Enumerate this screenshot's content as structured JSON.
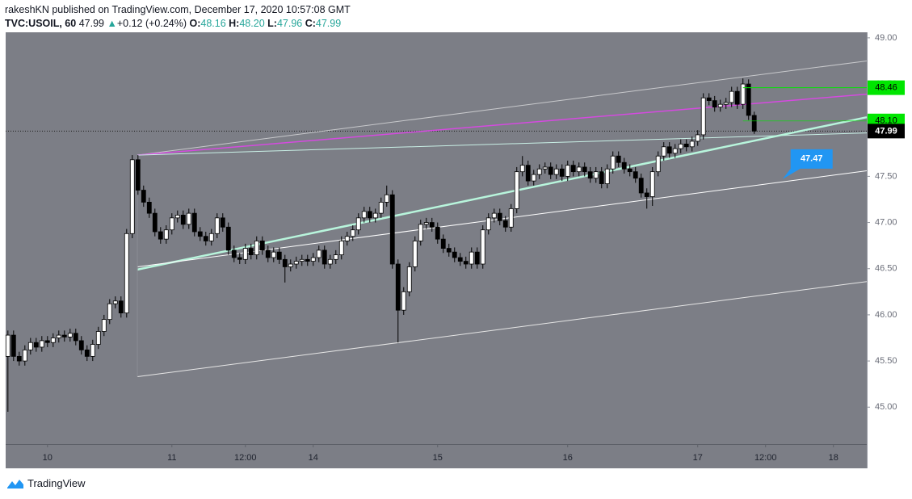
{
  "header": {
    "publisher": "rakeshKN published on TradingView.com, December 17, 2020 10:57:08 GMT",
    "symbol": "TVC:USOIL, 60",
    "last": "47.99",
    "arrow": "▲",
    "change": "+0.12 (+0.24%)",
    "o_label": "O:",
    "o": "48.16",
    "h_label": "H:",
    "h": "48.20",
    "l_label": "L:",
    "l": "47.96",
    "c_label": "C:",
    "c": "47.99"
  },
  "footer": {
    "brand": "TradingView"
  },
  "chart_data": {
    "type": "candlestick",
    "up_color": "#ffffff",
    "down_color": "#000000",
    "xlim": [
      -0.4,
      151.9
    ],
    "ylim": [
      44.6,
      49.06
    ],
    "xticks": [
      {
        "value": 7,
        "label": "10"
      },
      {
        "value": 29,
        "label": "11"
      },
      {
        "value": 42,
        "label": "12:00"
      },
      {
        "value": 54,
        "label": "14"
      },
      {
        "value": 76,
        "label": "15"
      },
      {
        "value": 99,
        "label": "16"
      },
      {
        "value": 122,
        "label": "17"
      },
      {
        "value": 134,
        "label": "12:00"
      },
      {
        "value": 146,
        "label": "18"
      }
    ],
    "yticks": [
      {
        "value": 45,
        "label": "45.00"
      },
      {
        "value": 45.5,
        "label": "45.50"
      },
      {
        "value": 46,
        "label": "46.00"
      },
      {
        "value": 46.5,
        "label": "46.50"
      },
      {
        "value": 47,
        "label": "47.00"
      },
      {
        "value": 47.5,
        "label": "47.50"
      },
      {
        "value": 48,
        "label": "48.00"
      },
      {
        "value": 48.5,
        "label": "48.50"
      },
      {
        "value": 49,
        "label": "49.00"
      }
    ],
    "open": [
      45.55,
      45.78,
      45.55,
      45.5,
      45.62,
      45.7,
      45.65,
      45.72,
      45.7,
      45.75,
      45.78,
      45.76,
      45.8,
      45.72,
      45.62,
      45.55,
      45.68,
      45.82,
      45.95,
      46.12,
      46.15,
      46.02,
      46.88,
      47.68,
      47.35,
      47.22,
      47.1,
      46.9,
      46.82,
      46.92,
      47.05,
      47.08,
      46.98,
      47.1,
      46.9,
      46.85,
      46.8,
      46.88,
      47.05,
      46.95,
      46.7,
      46.62,
      46.6,
      46.72,
      46.65,
      46.8,
      46.7,
      46.62,
      46.68,
      46.6,
      46.52,
      46.55,
      46.58,
      46.6,
      46.58,
      46.62,
      46.7,
      46.55,
      46.6,
      46.65,
      46.8,
      46.85,
      46.92,
      47.05,
      47.12,
      47.05,
      47.1,
      47.22,
      47.3,
      46.55,
      46.05,
      46.25,
      46.52,
      46.8,
      46.98,
      47.0,
      46.95,
      46.82,
      46.72,
      46.68,
      46.62,
      46.58,
      46.55,
      46.68,
      46.55,
      46.92,
      47.05,
      47.1,
      47.02,
      46.95,
      47.15,
      47.55,
      47.62,
      47.45,
      47.52,
      47.58,
      47.6,
      47.52,
      47.58,
      47.5,
      47.62,
      47.55,
      47.6,
      47.55,
      47.48,
      47.55,
      47.42,
      47.58,
      47.72,
      47.65,
      47.58,
      47.55,
      47.48,
      47.32,
      47.28,
      47.55,
      47.72,
      47.82,
      47.75,
      47.8,
      47.85,
      47.82,
      47.88,
      47.95,
      48.35,
      48.32,
      48.25,
      48.28,
      48.3,
      48.42,
      48.28,
      48.5,
      48.16
    ],
    "high": [
      45.83,
      45.83,
      45.6,
      45.67,
      45.75,
      45.75,
      45.77,
      45.77,
      45.8,
      45.83,
      45.83,
      45.85,
      45.85,
      45.77,
      45.67,
      45.73,
      45.87,
      46.0,
      46.17,
      46.2,
      46.2,
      46.93,
      47.73,
      47.73,
      47.4,
      47.27,
      47.15,
      46.95,
      46.97,
      47.1,
      47.13,
      47.13,
      47.15,
      47.15,
      46.95,
      46.9,
      46.93,
      47.1,
      47.1,
      47.0,
      46.75,
      46.67,
      46.77,
      46.77,
      46.85,
      46.85,
      46.75,
      46.73,
      46.73,
      46.65,
      46.6,
      46.63,
      46.65,
      46.65,
      46.67,
      46.75,
      46.75,
      46.65,
      46.7,
      46.85,
      46.9,
      46.97,
      47.1,
      47.17,
      47.17,
      47.15,
      47.27,
      47.4,
      47.35,
      46.6,
      46.3,
      46.57,
      46.85,
      47.03,
      47.05,
      47.05,
      47.0,
      46.87,
      46.77,
      46.73,
      46.67,
      46.63,
      46.73,
      46.73,
      46.97,
      47.1,
      47.15,
      47.15,
      47.07,
      47.2,
      47.6,
      47.72,
      47.67,
      47.57,
      47.63,
      47.65,
      47.65,
      47.63,
      47.63,
      47.67,
      47.67,
      47.65,
      47.65,
      47.6,
      47.6,
      47.6,
      47.63,
      47.77,
      47.77,
      47.7,
      47.63,
      47.6,
      47.53,
      47.37,
      47.6,
      47.77,
      47.87,
      47.87,
      47.85,
      47.9,
      47.9,
      47.93,
      48.0,
      48.4,
      48.4,
      48.37,
      48.33,
      48.35,
      48.47,
      48.47,
      48.56,
      48.55,
      48.2
    ],
    "low": [
      44.95,
      45.5,
      45.45,
      45.45,
      45.57,
      45.6,
      45.6,
      45.65,
      45.65,
      45.7,
      45.71,
      45.71,
      45.67,
      45.57,
      45.5,
      45.5,
      45.63,
      45.77,
      45.9,
      46.07,
      45.97,
      45.97,
      46.83,
      47.3,
      47.17,
      47.05,
      46.85,
      46.77,
      46.77,
      46.87,
      47.0,
      46.93,
      46.93,
      46.85,
      46.8,
      46.75,
      46.75,
      46.83,
      46.9,
      46.65,
      46.57,
      46.55,
      46.55,
      46.6,
      46.6,
      46.65,
      46.57,
      46.57,
      46.55,
      46.35,
      46.47,
      46.5,
      46.53,
      46.53,
      46.53,
      46.57,
      46.5,
      46.5,
      46.55,
      46.6,
      46.75,
      46.8,
      46.87,
      47.0,
      47.0,
      47.0,
      47.05,
      47.17,
      46.5,
      45.7,
      46.0,
      46.2,
      46.47,
      46.75,
      46.93,
      46.9,
      46.77,
      46.67,
      46.63,
      46.57,
      46.53,
      46.5,
      46.5,
      46.5,
      46.5,
      46.87,
      47.0,
      46.97,
      46.9,
      46.9,
      47.1,
      47.5,
      47.4,
      47.4,
      47.47,
      47.53,
      47.47,
      47.47,
      47.45,
      47.45,
      47.5,
      47.5,
      47.5,
      47.43,
      47.43,
      47.37,
      47.37,
      47.53,
      47.6,
      47.53,
      47.5,
      47.43,
      47.27,
      47.15,
      47.18,
      47.5,
      47.67,
      47.7,
      47.7,
      47.75,
      47.77,
      47.77,
      47.83,
      47.9,
      48.27,
      48.2,
      48.2,
      48.23,
      48.25,
      48.23,
      48.23,
      48.11,
      47.96
    ],
    "close": [
      45.78,
      45.55,
      45.5,
      45.62,
      45.7,
      45.65,
      45.72,
      45.7,
      45.75,
      45.78,
      45.76,
      45.8,
      45.72,
      45.62,
      45.55,
      45.68,
      45.82,
      45.95,
      46.12,
      46.15,
      46.02,
      46.88,
      47.68,
      47.35,
      47.22,
      47.1,
      46.9,
      46.82,
      46.92,
      47.05,
      47.08,
      46.98,
      47.1,
      46.9,
      46.85,
      46.8,
      46.88,
      47.05,
      46.95,
      46.7,
      46.62,
      46.6,
      46.72,
      46.65,
      46.8,
      46.7,
      46.62,
      46.68,
      46.6,
      46.52,
      46.55,
      46.58,
      46.6,
      46.58,
      46.62,
      46.7,
      46.55,
      46.6,
      46.65,
      46.8,
      46.85,
      46.92,
      47.05,
      47.12,
      47.05,
      47.1,
      47.22,
      47.3,
      46.55,
      46.05,
      46.25,
      46.52,
      46.8,
      46.98,
      47.0,
      46.95,
      46.82,
      46.72,
      46.68,
      46.62,
      46.58,
      46.55,
      46.68,
      46.55,
      46.92,
      47.05,
      47.1,
      47.02,
      46.95,
      47.15,
      47.55,
      47.62,
      47.45,
      47.52,
      47.58,
      47.6,
      47.52,
      47.58,
      47.5,
      47.62,
      47.55,
      47.6,
      47.55,
      47.48,
      47.55,
      47.42,
      47.58,
      47.72,
      47.65,
      47.58,
      47.55,
      47.48,
      47.32,
      47.28,
      47.55,
      47.72,
      47.82,
      47.75,
      47.8,
      47.85,
      47.82,
      47.88,
      47.95,
      48.35,
      48.32,
      48.25,
      48.28,
      48.3,
      48.42,
      48.28,
      48.5,
      48.16,
      47.99
    ],
    "trend_lines": [
      {
        "color": "#c8c9cc",
        "width": 1,
        "x": [
          22.9,
          151.9
        ],
        "y": [
          47.73,
          48.75
        ]
      },
      {
        "color": "#d54ae0",
        "width": 1.5,
        "x": [
          22.9,
          151.9
        ],
        "y": [
          47.73,
          48.39
        ]
      },
      {
        "color": "#c9f0e6",
        "width": 1,
        "x": [
          22.9,
          151.9
        ],
        "y": [
          47.73,
          47.97
        ]
      },
      {
        "color": "#b8f5dc",
        "width": 2.5,
        "x": [
          22.9,
          151.9
        ],
        "y": [
          46.49,
          48.14
        ]
      },
      {
        "color": "#ffffff",
        "width": 1,
        "x": [
          22.9,
          151.9
        ],
        "y": [
          46.52,
          47.56
        ]
      },
      {
        "color": "#e6e6e6",
        "width": 1,
        "x": [
          22.9,
          151.9
        ],
        "y": [
          45.33,
          46.36
        ]
      }
    ],
    "levels": [
      {
        "price": 48.46,
        "color": "#00e600",
        "x_start": 130
      },
      {
        "price": 48.1,
        "label": "48.10",
        "color": "#00e600",
        "x_start": 130
      }
    ],
    "last_price": 47.99,
    "callout": {
      "price": 47.47,
      "color": "#2196f3",
      "x": 137
    }
  }
}
